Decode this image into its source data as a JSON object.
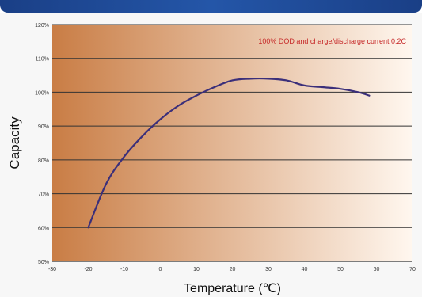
{
  "chart_data": {
    "type": "line",
    "title": "",
    "annotation": "100% DOD and charge/discharge current 0.2C",
    "xlabel": "Temperature (℃)",
    "ylabel": "Capacity",
    "xlim": [
      -30,
      70
    ],
    "ylim": [
      50,
      120
    ],
    "x_ticks": [
      -30,
      -20,
      -10,
      0,
      10,
      20,
      30,
      40,
      50,
      60,
      70
    ],
    "y_ticks": [
      {
        "value": 120,
        "label": "120%"
      },
      {
        "value": 110,
        "label": "110%"
      },
      {
        "value": 100,
        "label": "100%"
      },
      {
        "value": 90,
        "label": "90%"
      },
      {
        "value": 80,
        "label": "80%"
      },
      {
        "value": 70,
        "label": "70%"
      },
      {
        "value": 60,
        "label": "60%"
      },
      {
        "value": 50,
        "label": "50%"
      }
    ],
    "grid": true,
    "series": [
      {
        "x": [
          -20,
          -15,
          -10,
          -5,
          0,
          5,
          10,
          15,
          20,
          25,
          30,
          35,
          40,
          45,
          50,
          55,
          58
        ],
        "y": [
          60,
          73,
          81,
          87,
          92,
          96,
          99,
          101.5,
          103.5,
          104,
          104,
          103.5,
          102,
          101.5,
          101,
          100,
          99
        ],
        "color": "#3b2f7a"
      }
    ]
  },
  "colors": {
    "plot_gradient_start": "#c97d45",
    "plot_gradient_end": "#fff7ef",
    "grid": "#333333",
    "curve": "#3b2f7a",
    "annotation": "#c62828"
  }
}
